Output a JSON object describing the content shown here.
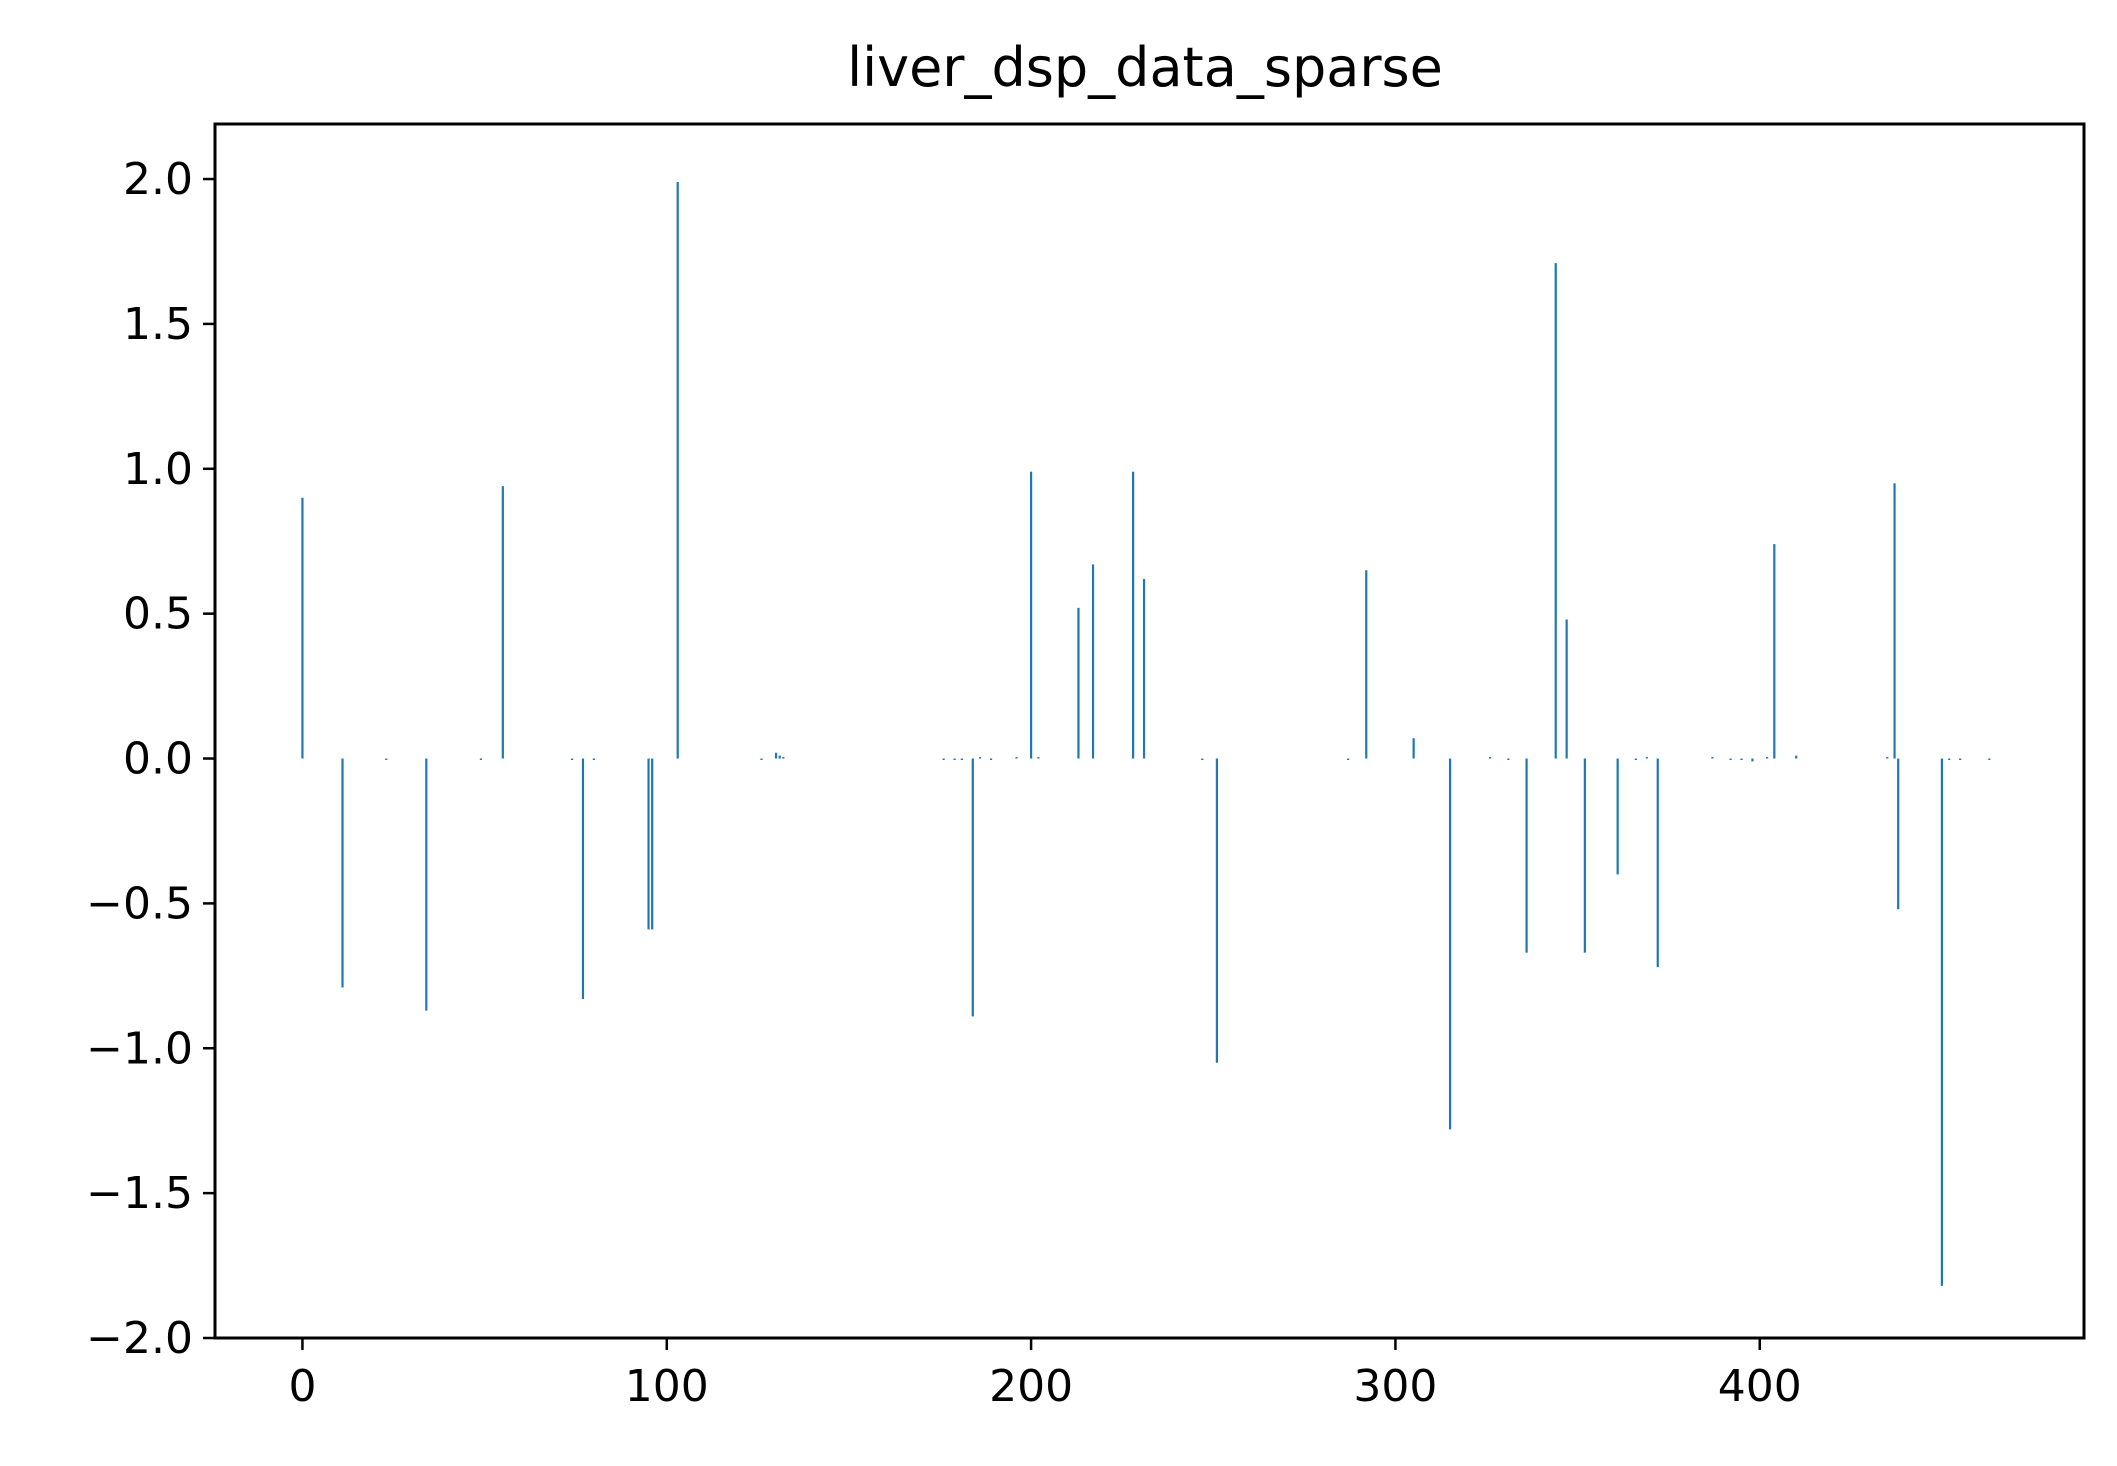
{
  "chart_data": {
    "type": "bar",
    "title": "liver_dsp_data_sparse",
    "xlabel": "",
    "ylabel": "",
    "xlim": [
      -24,
      489
    ],
    "ylim": [
      -2.0,
      2.19
    ],
    "xticks": [
      0,
      100,
      200,
      300,
      400
    ],
    "yticks": [
      2.0,
      1.5,
      1.0,
      0.5,
      0.0,
      -0.5,
      -1.0,
      -1.5,
      -2.0
    ],
    "xtick_labels": [
      "0",
      "100",
      "200",
      "300",
      "400"
    ],
    "ytick_labels": [
      "2.0",
      "1.5",
      "1.0",
      "0.5",
      "0.0",
      "−0.5",
      "−1.0",
      "−1.5",
      "−2.0"
    ],
    "grid": false,
    "bar_color": "#1f77b4",
    "series": [
      {
        "x": [
          0,
          11,
          23,
          34,
          49,
          55,
          74,
          77,
          80,
          95,
          96,
          103,
          126,
          130,
          131,
          132,
          176,
          179,
          181,
          184,
          186,
          189,
          196,
          200,
          202,
          213,
          217,
          228,
          231,
          247,
          251,
          287,
          292,
          305,
          315,
          326,
          331,
          336,
          344,
          347,
          352,
          361,
          366,
          369,
          372,
          387,
          392,
          395,
          398,
          402,
          404,
          410,
          435,
          437,
          438,
          450,
          452,
          455,
          463
        ],
        "values": [
          0.9,
          -0.79,
          -0.005,
          -0.87,
          -0.005,
          0.94,
          -0.005,
          -0.83,
          -0.005,
          -0.59,
          -0.59,
          1.99,
          -0.005,
          0.02,
          0.01,
          0.005,
          -0.005,
          -0.005,
          -0.005,
          -0.89,
          0.005,
          -0.005,
          0.005,
          0.99,
          0.005,
          0.52,
          0.67,
          0.99,
          0.62,
          -0.005,
          -1.05,
          -0.005,
          0.65,
          0.07,
          -1.28,
          0.005,
          -0.005,
          -0.67,
          1.71,
          0.48,
          -0.67,
          -0.4,
          -0.005,
          0.005,
          -0.72,
          0.005,
          -0.005,
          -0.005,
          -0.01,
          0.005,
          0.74,
          0.01,
          0.005,
          0.95,
          -0.52,
          -1.82,
          -0.005,
          -0.005,
          -0.005
        ]
      }
    ]
  }
}
